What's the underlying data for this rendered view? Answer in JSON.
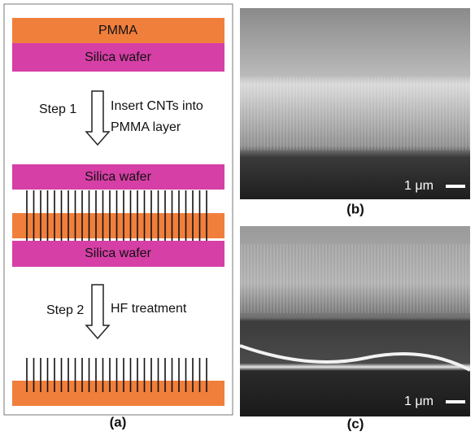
{
  "panel_a": {
    "layer_top": "PMMA",
    "layer_bottom": "Silica wafer",
    "step1": {
      "label": "Step 1",
      "text": [
        "Insert CNTs into",
        "PMMA layer"
      ]
    },
    "middle_top": "Silica wafer",
    "middle_bottom": "Silica wafer",
    "step2": {
      "label": "Step 2",
      "text": "HF treatment"
    },
    "caption": "(a)"
  },
  "panel_b": {
    "scale": "1 μm",
    "caption": "(b)"
  },
  "panel_c": {
    "scale": "1 μm",
    "caption": "(c)"
  }
}
